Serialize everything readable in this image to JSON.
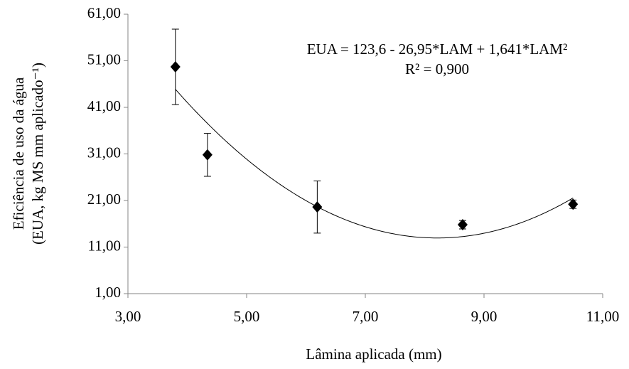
{
  "chart_data": {
    "type": "scatter",
    "x_label": "Lâmina aplicada (mm)",
    "y_label": [
      "Eficiência de uso da água",
      "(EUA, kg MS mm aplicado⁻¹)"
    ],
    "x": [
      3.8,
      4.34,
      6.19,
      8.64,
      10.5
    ],
    "series": [
      {
        "color": "#000000",
        "values": [
          49.7,
          30.8,
          19.6,
          15.8,
          20.2
        ],
        "errors": [
          8.1,
          4.6,
          5.6,
          0.9,
          0.9
        ]
      }
    ],
    "fit": {
      "coefficients": [
        123.6,
        -26.95,
        1.641
      ],
      "equation": "EUA = 123,6 - 26,95*LAM + 1,641*LAM²",
      "r2_label": "R² = 0,900"
    },
    "xlim": [
      3,
      11
    ],
    "xticks": [
      {
        "value": 3,
        "label": "3,00"
      },
      {
        "value": 5,
        "label": "5,00"
      },
      {
        "value": 7,
        "label": "7,00"
      },
      {
        "value": 9,
        "label": "9,00"
      },
      {
        "value": 11,
        "label": "11,00"
      }
    ],
    "ylim": [
      1,
      61
    ],
    "yticks": [
      {
        "value": 1,
        "label": "1,00"
      },
      {
        "value": 11,
        "label": "11,00"
      },
      {
        "value": 21,
        "label": "21,00"
      },
      {
        "value": 31,
        "label": "31,00"
      },
      {
        "value": 41,
        "label": "41,00"
      },
      {
        "value": 51,
        "label": "51,00"
      },
      {
        "value": 61,
        "label": "61,00"
      }
    ]
  }
}
